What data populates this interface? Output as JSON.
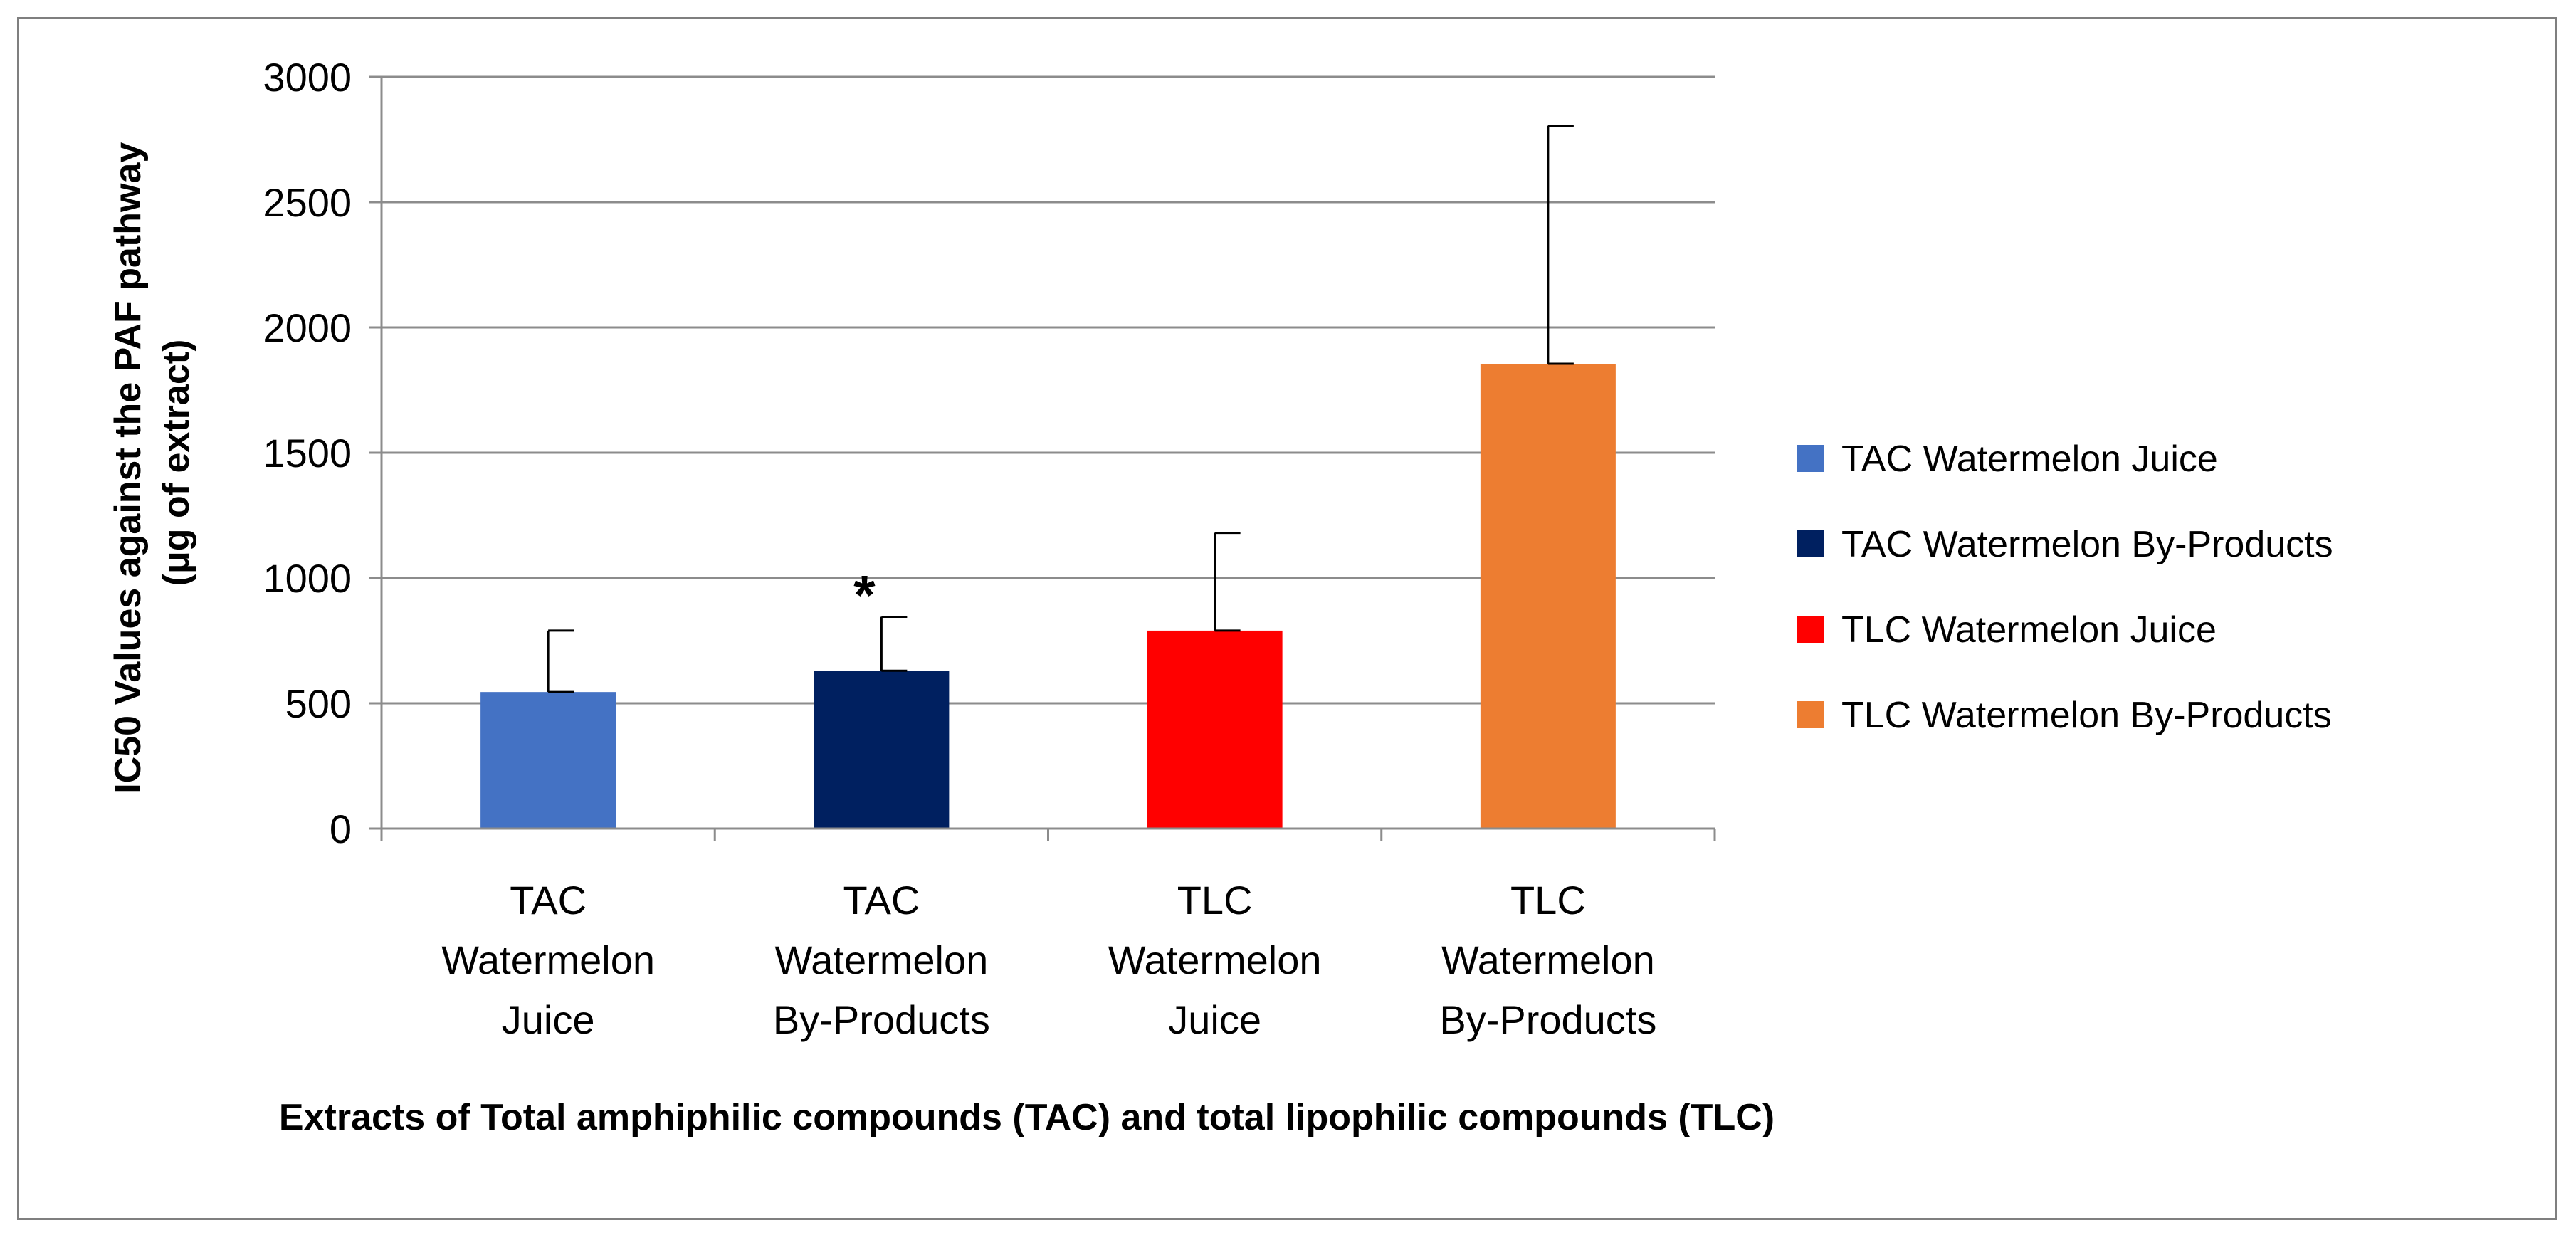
{
  "chart_data": {
    "type": "bar",
    "title": "",
    "xlabel": "Extracts of Total amphiphilic compounds (TAC) and total lipophilic compounds (TLC)",
    "ylabel_line1": "IC50 Values against the PAF pathway",
    "ylabel_line2": "(μg of extract)",
    "ylim": [
      0,
      3000
    ],
    "yticks": [
      "0",
      "500",
      "1000",
      "1500",
      "2000",
      "2500",
      "3000"
    ],
    "ytick_values": [
      0,
      500,
      1000,
      1500,
      2000,
      2500,
      3000
    ],
    "grid": true,
    "legend_position": "right",
    "categories": [
      {
        "lines": [
          "TAC",
          "Watermelon",
          "Juice"
        ]
      },
      {
        "lines": [
          "TAC",
          "Watermelon",
          "By-Products"
        ]
      },
      {
        "lines": [
          "TLC",
          "Watermelon",
          "Juice"
        ]
      },
      {
        "lines": [
          "TLC",
          "Watermelon",
          "By-Products"
        ]
      }
    ],
    "values": [
      545,
      630,
      790,
      1855
    ],
    "errors": [
      245,
      215,
      390,
      950
    ],
    "colors": [
      "#4472C4",
      "#002060",
      "#FF0000",
      "#ED7D31"
    ],
    "legend": [
      "TAC Watermelon Juice",
      "TAC Watermelon By-Products",
      "TLC Watermelon Juice",
      "TLC Watermelon By-Products"
    ],
    "annotations": [
      {
        "category_index": 1,
        "text": "*"
      }
    ]
  }
}
